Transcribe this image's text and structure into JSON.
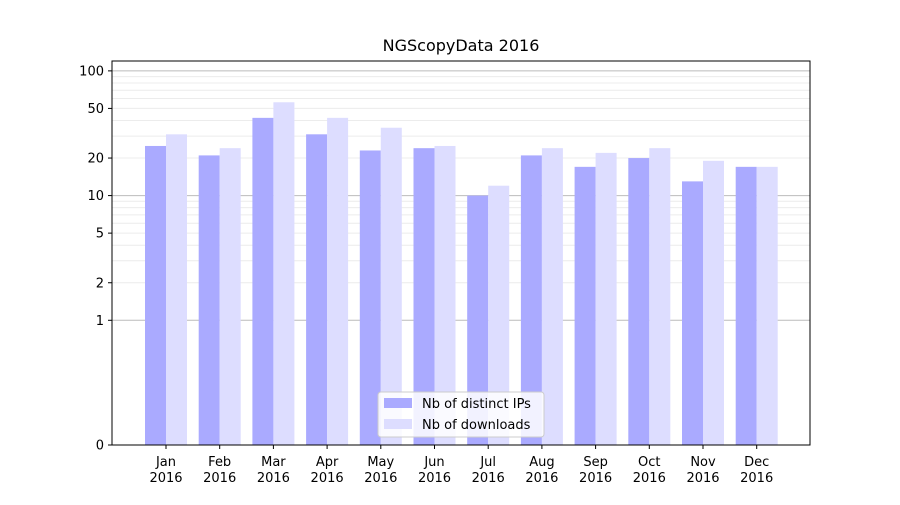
{
  "chart_data": {
    "type": "bar",
    "title": "NGScopyData 2016",
    "xlabel": "",
    "ylabel": "",
    "yscale": "symlog",
    "ylim": [
      0,
      120
    ],
    "yticks": [
      {
        "value": 0,
        "label": "0"
      },
      {
        "value": 1,
        "label": "1"
      },
      {
        "value": 2,
        "label": "2"
      },
      {
        "value": 5,
        "label": "5"
      },
      {
        "value": 10,
        "label": "10"
      },
      {
        "value": 20,
        "label": "20"
      },
      {
        "value": 50,
        "label": "50"
      },
      {
        "value": 100,
        "label": "100"
      }
    ],
    "categories": [
      {
        "month": "Jan",
        "year": "2016"
      },
      {
        "month": "Feb",
        "year": "2016"
      },
      {
        "month": "Mar",
        "year": "2016"
      },
      {
        "month": "Apr",
        "year": "2016"
      },
      {
        "month": "May",
        "year": "2016"
      },
      {
        "month": "Jun",
        "year": "2016"
      },
      {
        "month": "Jul",
        "year": "2016"
      },
      {
        "month": "Aug",
        "year": "2016"
      },
      {
        "month": "Sep",
        "year": "2016"
      },
      {
        "month": "Oct",
        "year": "2016"
      },
      {
        "month": "Nov",
        "year": "2016"
      },
      {
        "month": "Dec",
        "year": "2016"
      }
    ],
    "series": [
      {
        "name": "Nb of distinct IPs",
        "color": "#aaaaff",
        "values": [
          25,
          21,
          42,
          31,
          23,
          24,
          10,
          21,
          17,
          20,
          13,
          17
        ]
      },
      {
        "name": "Nb of downloads",
        "color": "#ddddff",
        "values": [
          31,
          24,
          56,
          42,
          35,
          25,
          12,
          24,
          22,
          24,
          19,
          17
        ]
      }
    ],
    "grid": true,
    "legend_position": "bottom-center"
  }
}
